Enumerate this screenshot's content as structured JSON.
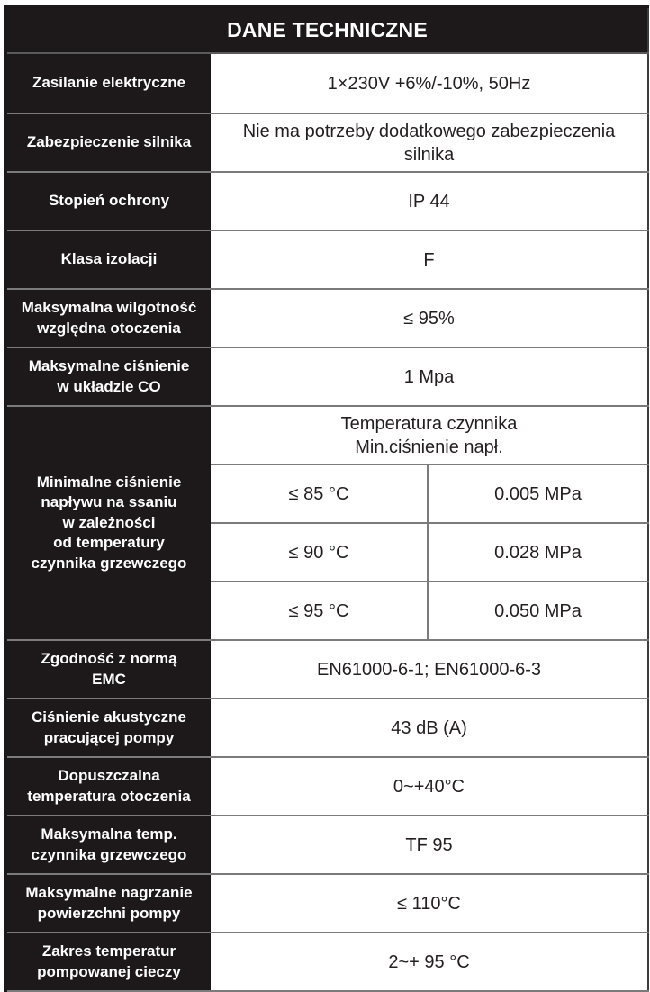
{
  "table": {
    "title": "DANE TECHNICZNE",
    "rows_top": [
      {
        "label": "Zasilanie elektryczne",
        "value": "1×230V +6%/-10%, 50Hz"
      },
      {
        "label": "Zabezpieczenie silnika",
        "value": "Nie ma potrzeby dodatkowego zabezpieczenia silnika"
      },
      {
        "label": "Stopień ochrony",
        "value": "IP 44"
      },
      {
        "label": "Klasa izolacji",
        "value": "F"
      },
      {
        "label": "Maksymalna wilgotność\nwzględna otoczenia",
        "value": "≤ 95%"
      },
      {
        "label": "Maksymalne ciśnienie\nw układzie CO",
        "value": "1 Mpa"
      }
    ],
    "pressure_section": {
      "label": "Minimalne ciśnienie\nnapływu na ssaniu\nw zależności\nod temperatury\nczynnika grzewczego",
      "header": "Temperatura czynnika\nMin.ciśnienie napł.",
      "rows": [
        {
          "temp": "≤ 85 °C",
          "pressure": "0.005 MPa"
        },
        {
          "temp": "≤ 90 °C",
          "pressure": "0.028 MPa"
        },
        {
          "temp": "≤  95 °C",
          "pressure": "0.050 MPa"
        }
      ]
    },
    "rows_bottom": [
      {
        "label": "Zgodność z normą\nEMC",
        "value": "EN61000-6-1; EN61000-6-3"
      },
      {
        "label": "Ciśnienie akustyczne\npracującej pompy",
        "value": "43 dB (A)"
      },
      {
        "label": "Dopuszczalna\ntemperatura otoczenia",
        "value": "0~+40°C"
      },
      {
        "label": "Maksymalna temp.\nczynnika grzewczego",
        "value": "TF 95"
      },
      {
        "label": "Maksymalne nagrzanie\npowierzchni pompy",
        "value": "≤ 110°C"
      },
      {
        "label": "Zakres temperatur\npompowanej cieczy",
        "value": "2~+ 95 °C"
      }
    ]
  },
  "colors": {
    "cell_black": "#1d191a",
    "grid_gray": "#7b7b7b"
  }
}
